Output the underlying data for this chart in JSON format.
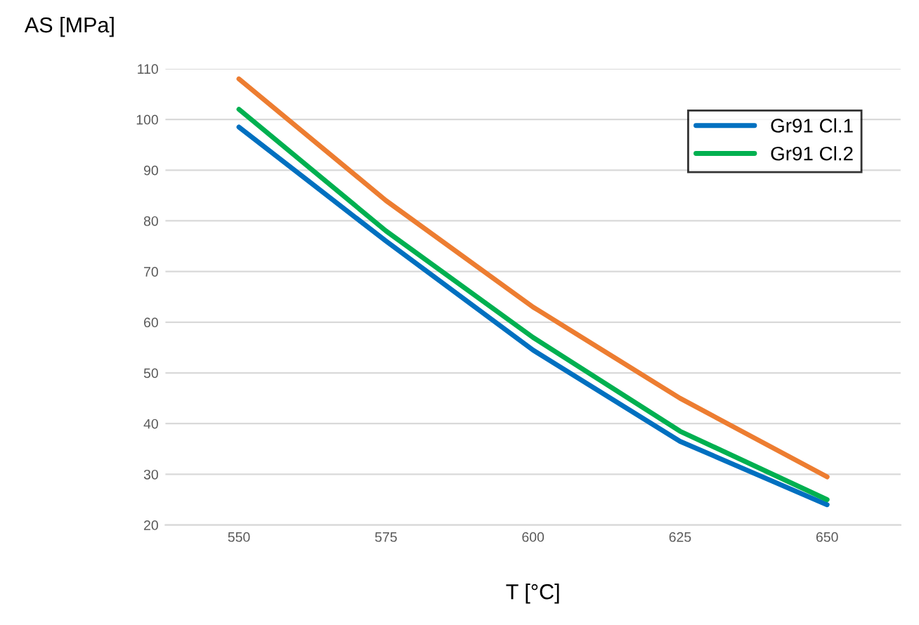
{
  "chart_data": {
    "type": "line",
    "xlabel": "T [°C]",
    "ylabel": "AS [MPa]",
    "categories": [
      "550",
      "575",
      "600",
      "625",
      "650"
    ],
    "series": [
      {
        "name": "Gr91 Cl.1",
        "color": "#0070c0",
        "values": [
          98.5,
          76,
          54.5,
          36.5,
          24
        ]
      },
      {
        "name": "Gr91 Cl.2",
        "color": "#00b050",
        "values": [
          102,
          78,
          57,
          38.5,
          25
        ]
      },
      {
        "color": "#ed7d31",
        "values": [
          108,
          84,
          63,
          45,
          29.5
        ]
      }
    ],
    "ylim": [
      20,
      110
    ],
    "yticks": [
      20,
      30,
      40,
      50,
      60,
      70,
      80,
      90,
      100,
      110
    ],
    "grid": "y",
    "legend": "top right",
    "marker": "none",
    "line_style": "solid"
  }
}
